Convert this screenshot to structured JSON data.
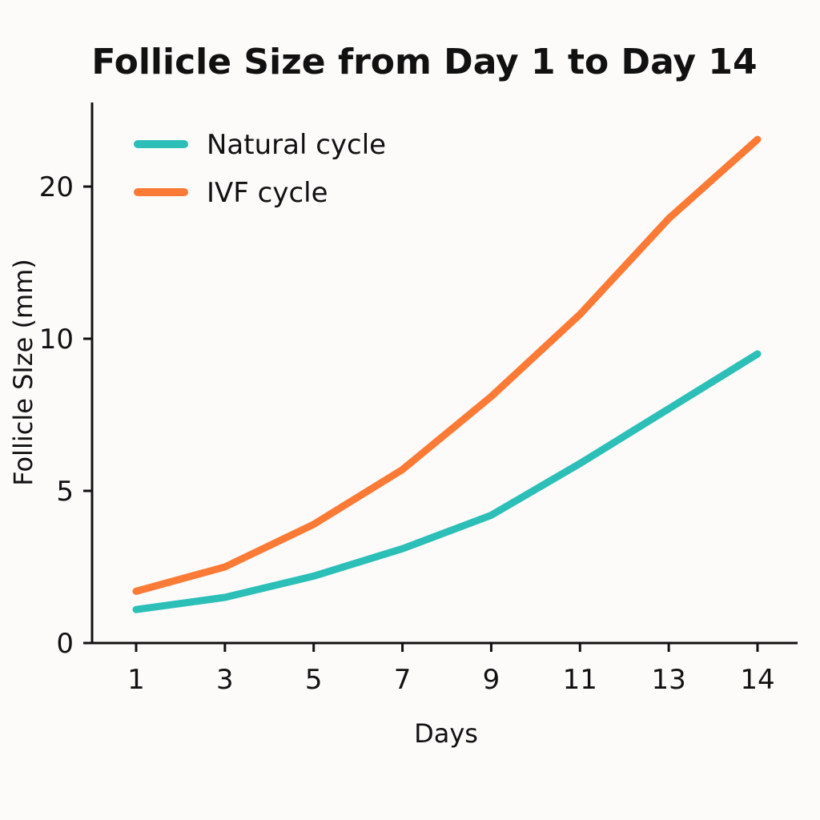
{
  "chart_data": {
    "type": "line",
    "title": "Follicle Size from Day 1 to Day 14",
    "xlabel": "Days",
    "ylabel": "Follicle SIze (mm)",
    "categories": [
      "1",
      "3",
      "5",
      "7",
      "9",
      "11",
      "13",
      "14"
    ],
    "yticks": [
      0,
      5,
      10,
      20
    ],
    "y_scale": "non-uniform (ticks evenly spaced)",
    "grid": false,
    "legend_position": "top-left",
    "series": [
      {
        "name": "Natural cycle",
        "color": "#2bbfb8",
        "values": [
          1.1,
          1.5,
          2.2,
          3.1,
          4.2,
          5.9,
          7.7,
          9.5
        ]
      },
      {
        "name": "IVF cycle",
        "color": "#fb7a35",
        "values": [
          1.7,
          2.5,
          3.9,
          5.7,
          8.1,
          11.6,
          17.9,
          23.1
        ]
      }
    ]
  }
}
